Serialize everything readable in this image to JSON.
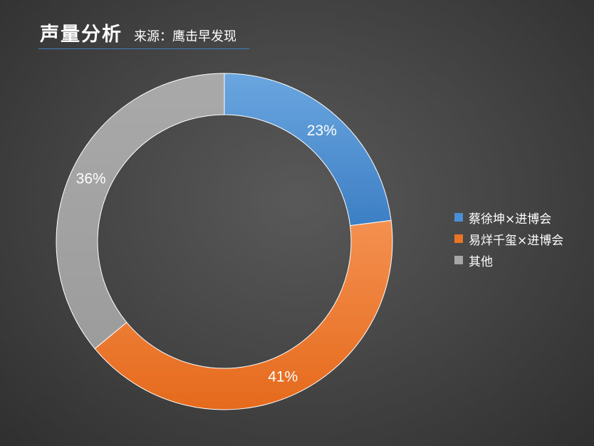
{
  "header": {
    "title": "声量分析",
    "source": "来源：鹰击早发现"
  },
  "chart_data": {
    "type": "pie",
    "variant": "donut",
    "start_angle_deg": 0,
    "direction": "clockwise",
    "categories": [
      "蔡徐坤×进博会",
      "易烊千玺×进博会",
      "其他"
    ],
    "values": [
      23,
      41,
      36
    ],
    "labels": [
      "23%",
      "41%",
      "36%"
    ],
    "colors": [
      "#4a8fd4",
      "#ea7425",
      "#a6a6a6"
    ],
    "legend_position": "right"
  }
}
